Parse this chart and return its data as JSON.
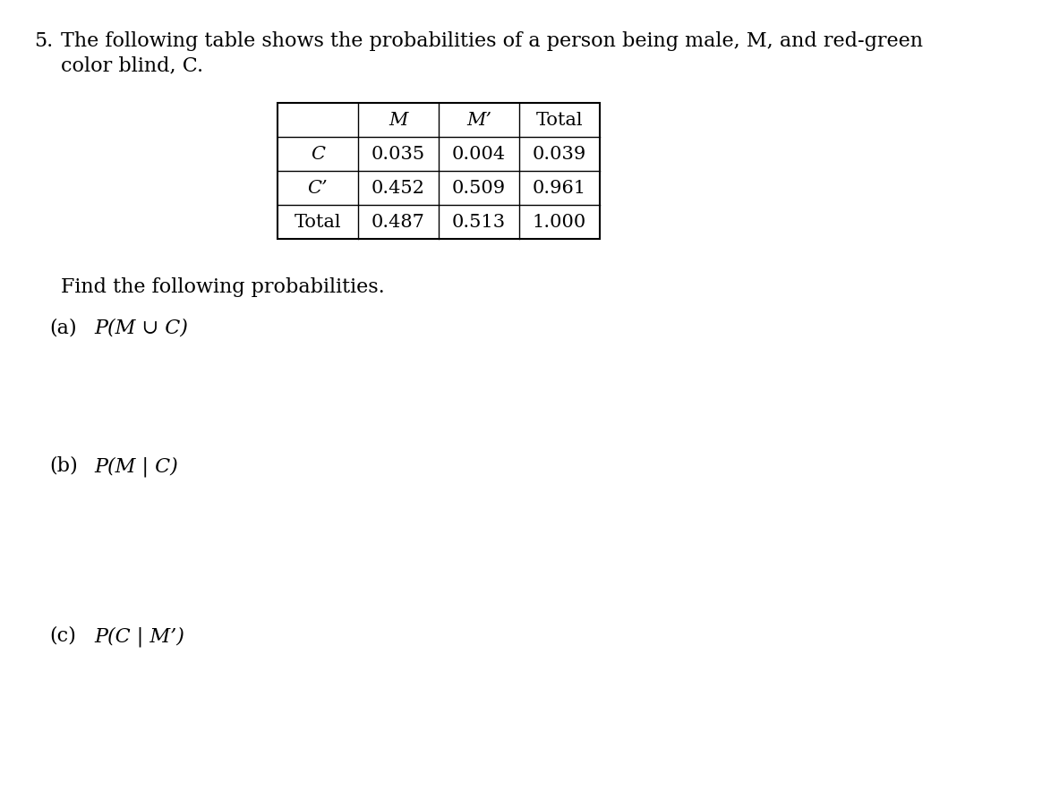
{
  "problem_number": "5.",
  "problem_text_line1": "The following table shows the probabilities of a person being male, M, and red-green",
  "problem_text_line2": "color blind, C.",
  "table": {
    "col_headers": [
      "",
      "M",
      "M’",
      "Total"
    ],
    "rows": [
      [
        "C",
        "0.035",
        "0.004",
        "0.039"
      ],
      [
        "C’",
        "0.452",
        "0.509",
        "0.961"
      ],
      [
        "Total",
        "0.487",
        "0.513",
        "1.000"
      ]
    ]
  },
  "find_text": "Find the following probabilities.",
  "parts": [
    {
      "label": "(a)",
      "math": "P(M ∪ C)"
    },
    {
      "label": "(b)",
      "math": "P(M | C)"
    },
    {
      "label": "(c)",
      "math": "P(C | M’)"
    }
  ],
  "bg_color": "#ffffff",
  "text_color": "#000000",
  "font_size_main": 16,
  "font_size_table": 15,
  "font_size_parts": 16
}
